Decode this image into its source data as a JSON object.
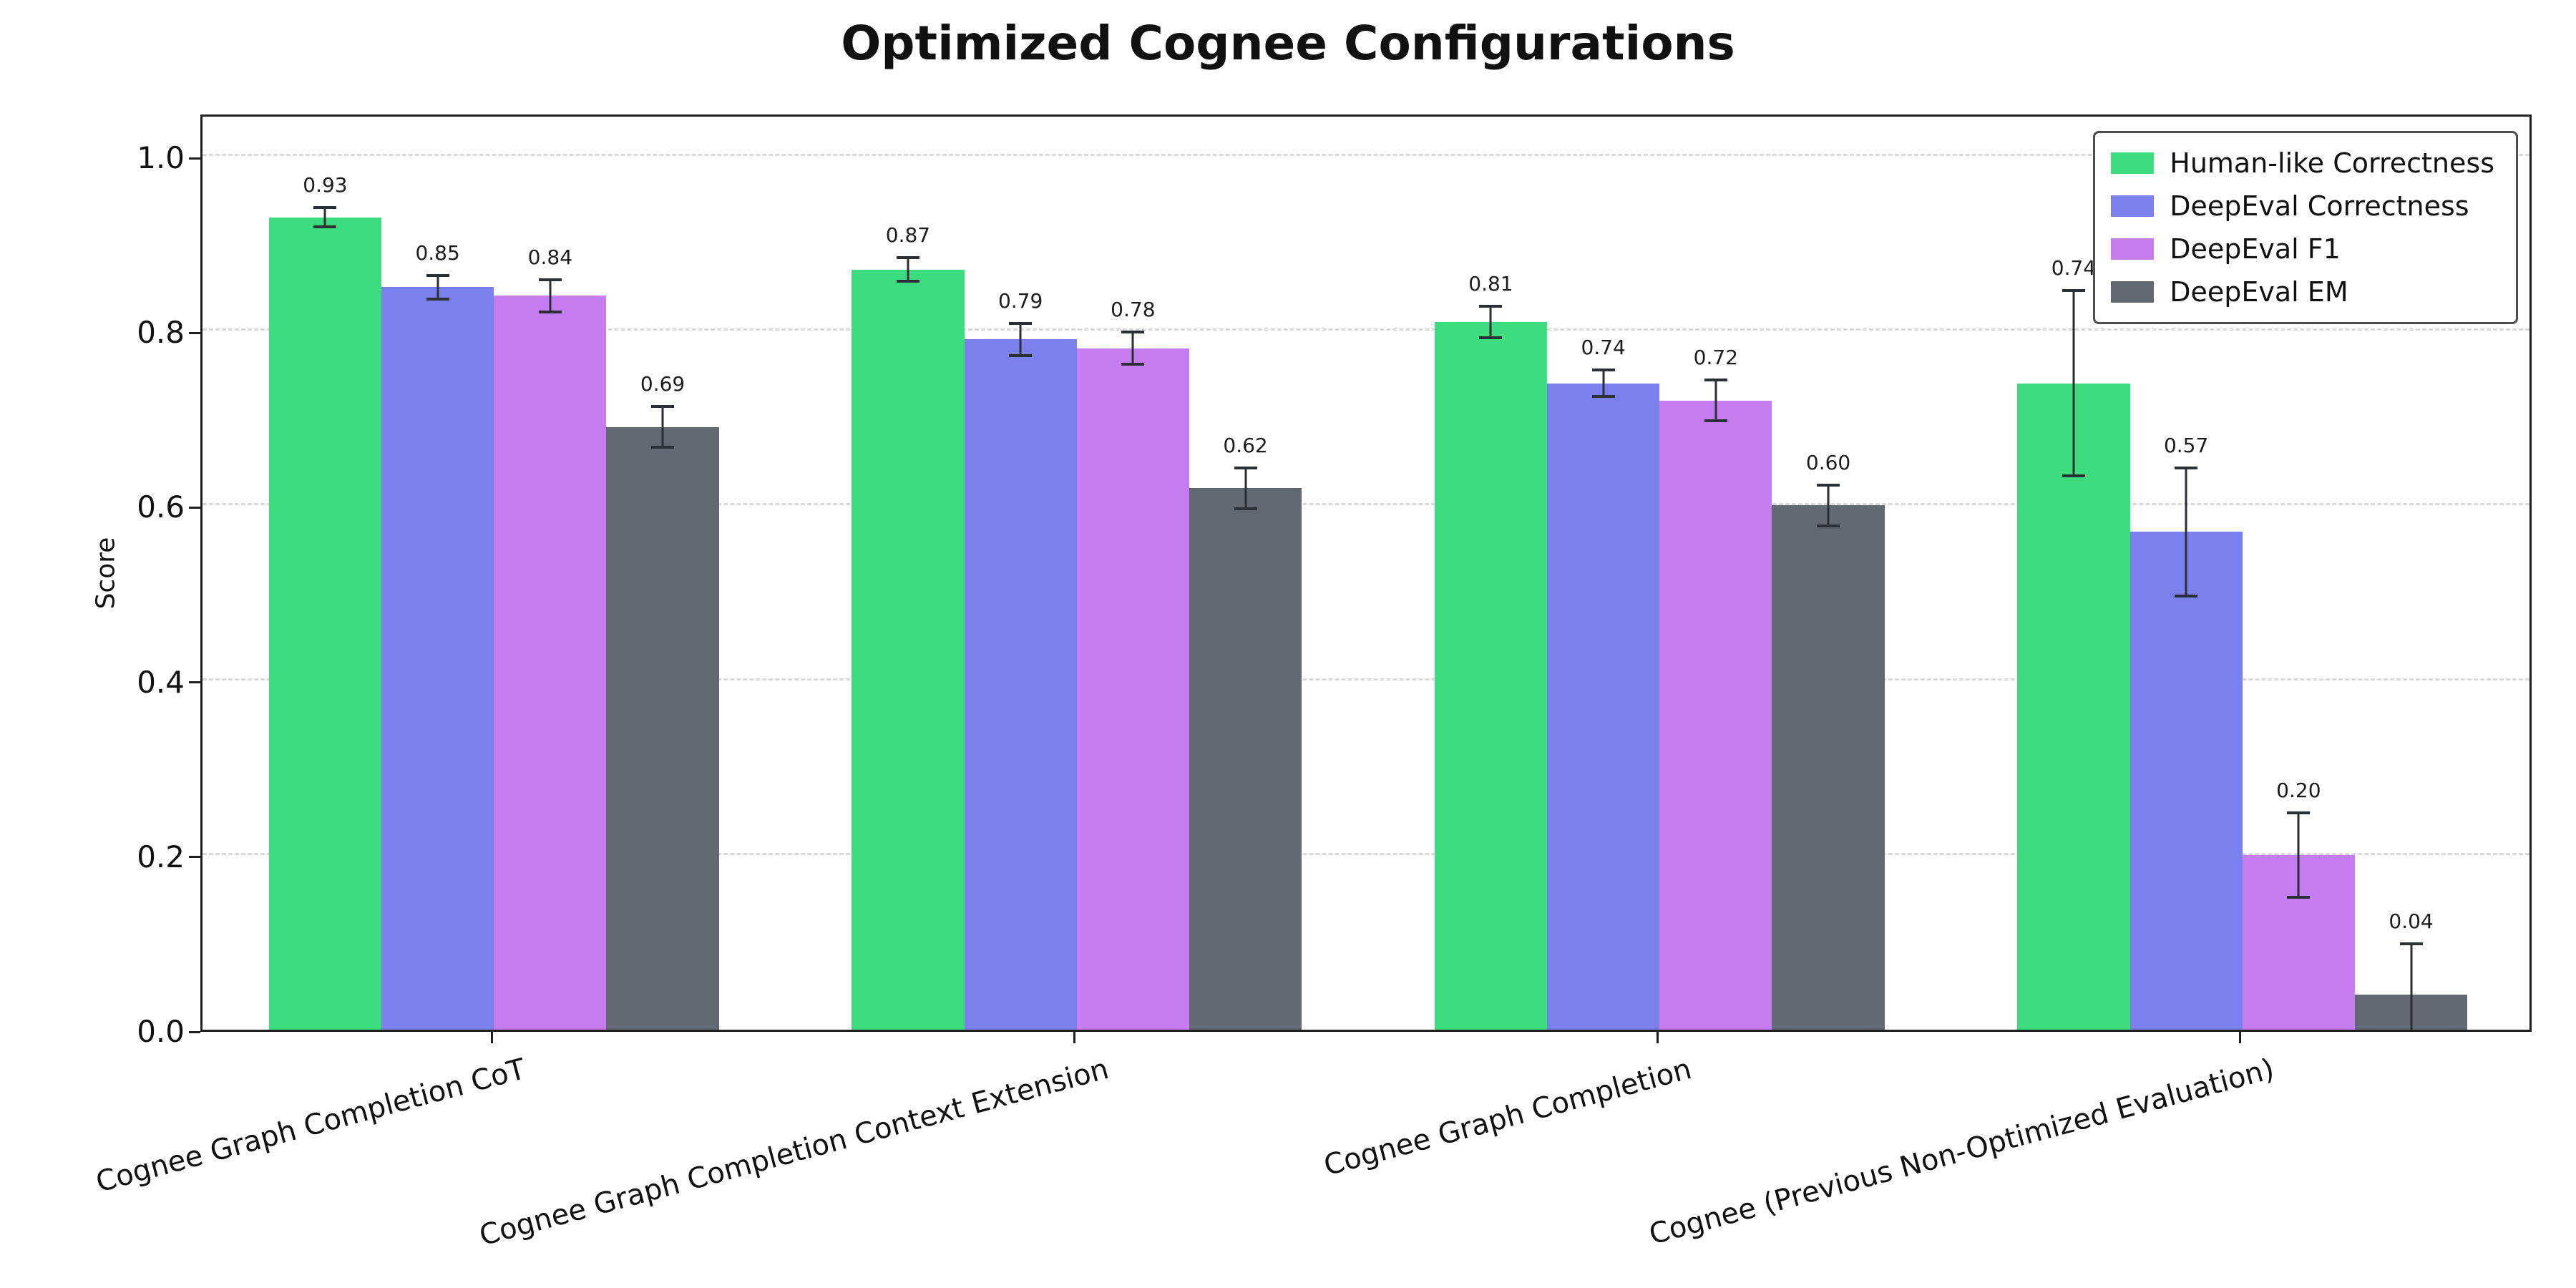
{
  "figure": {
    "title": "Optimized Cognee Configurations"
  },
  "chart_data": {
    "type": "bar",
    "title": "Optimized Cognee Configurations",
    "xlabel": "",
    "ylabel": "Score",
    "ylim": [
      0,
      1.05
    ],
    "yticks": [
      0.0,
      0.2,
      0.4,
      0.6,
      0.8,
      1.0
    ],
    "grid": true,
    "grid_style": "dashed",
    "legend_position": "upper right",
    "error_bar_color": "#2b2f36",
    "categories": [
      "Cognee Graph Completion CoT",
      "Cognee Graph Completion Context Extension",
      "Cognee Graph Completion",
      "Cognee (Previous Non-Optimized Evaluation)"
    ],
    "series": [
      {
        "name": "Human-like Correctness",
        "color": "#3ddc7e",
        "values": [
          0.93,
          0.87,
          0.81,
          0.74
        ],
        "errors": [
          0.013,
          0.015,
          0.02,
          0.108
        ]
      },
      {
        "name": "DeepEval Correctness",
        "color": "#7b80ec",
        "values": [
          0.85,
          0.79,
          0.74,
          0.57
        ],
        "errors": [
          0.015,
          0.02,
          0.017,
          0.075
        ]
      },
      {
        "name": "DeepEval F1",
        "color": "#c47cee",
        "values": [
          0.84,
          0.78,
          0.72,
          0.2
        ],
        "errors": [
          0.02,
          0.02,
          0.025,
          0.05
        ]
      },
      {
        "name": "DeepEval EM",
        "color": "#636973",
        "values": [
          0.69,
          0.62,
          0.6,
          0.04
        ],
        "errors": [
          0.025,
          0.025,
          0.025,
          0.06
        ]
      }
    ]
  }
}
